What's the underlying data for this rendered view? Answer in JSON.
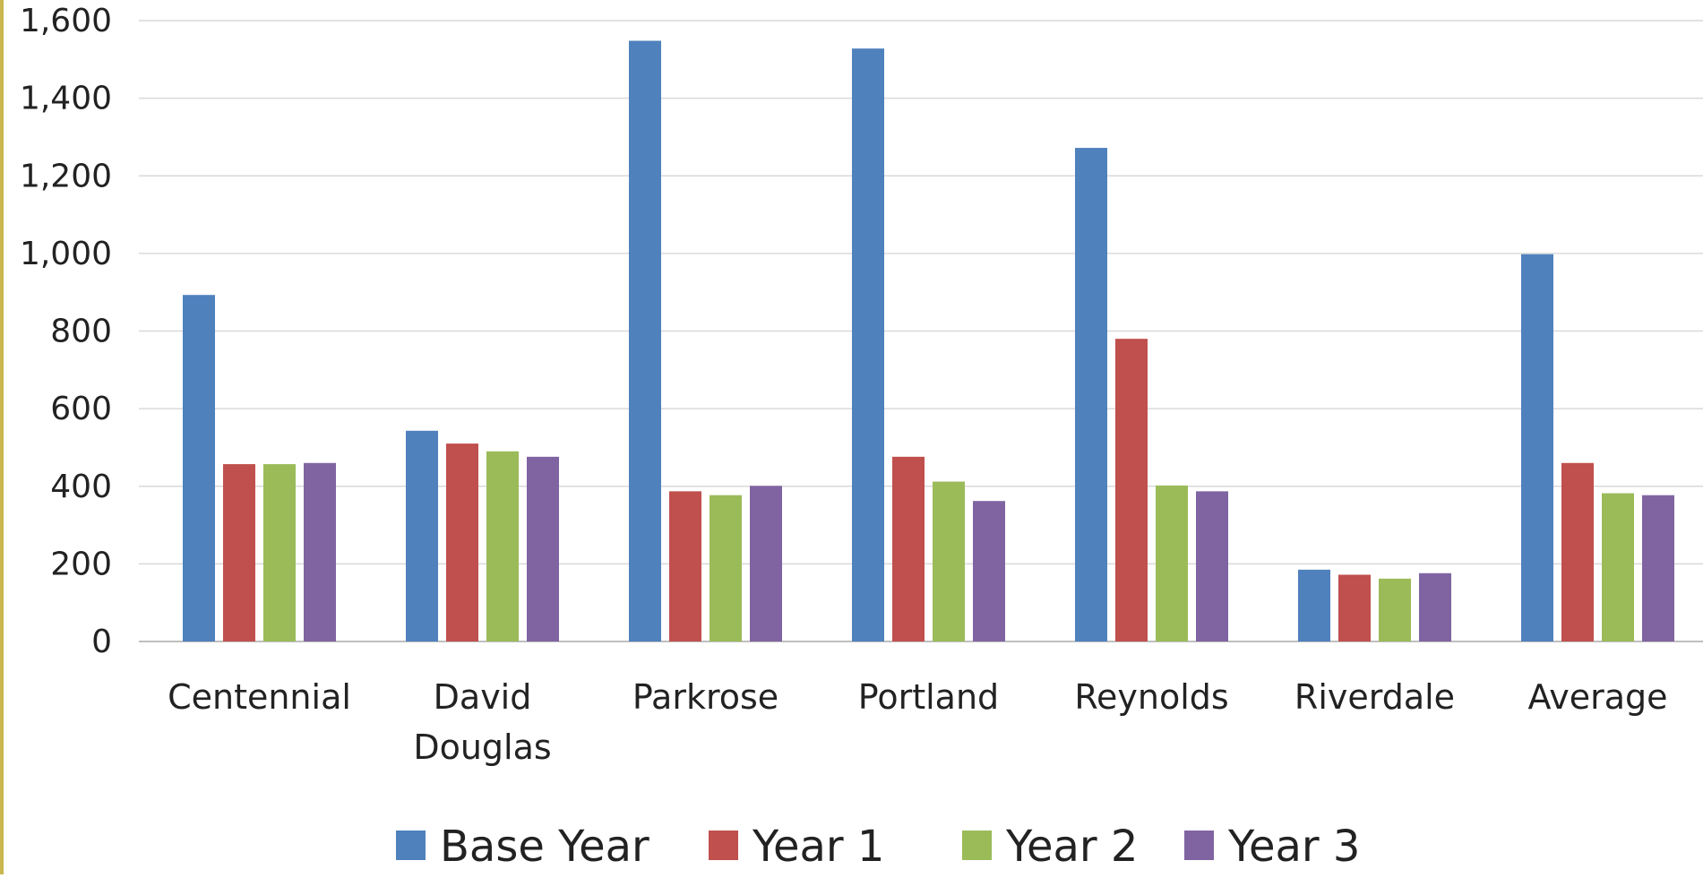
{
  "chart_data": {
    "type": "bar",
    "title": "",
    "xlabel": "",
    "ylabel": "",
    "categories": [
      [
        "Centennial"
      ],
      [
        "David",
        "Douglas"
      ],
      [
        "Parkrose"
      ],
      [
        "Portland"
      ],
      [
        "Reynolds"
      ],
      [
        "Riverdale"
      ],
      [
        "Average"
      ]
    ],
    "series": [
      {
        "name": "Base Year",
        "color": "#4f81bd",
        "values": [
          893,
          543,
          1548,
          1528,
          1272,
          185,
          998
        ]
      },
      {
        "name": "Year 1",
        "color": "#c0504d",
        "values": [
          457,
          510,
          387,
          476,
          780,
          172,
          460
        ]
      },
      {
        "name": "Year 2",
        "color": "#9bbb59",
        "values": [
          457,
          490,
          377,
          412,
          402,
          162,
          382
        ]
      },
      {
        "name": "Year 3",
        "color": "#8064a2",
        "values": [
          460,
          476,
          401,
          362,
          387,
          176,
          377
        ]
      }
    ],
    "ylim": [
      0,
      1600
    ],
    "yticks": [
      0,
      200,
      400,
      600,
      800,
      1000,
      1200,
      1400,
      1600
    ],
    "ytick_labels": [
      "0",
      "200",
      "400",
      "600",
      "800",
      "1,000",
      "1,200",
      "1,400",
      "1,600"
    ],
    "grid": true,
    "legend_position": "bottom"
  }
}
